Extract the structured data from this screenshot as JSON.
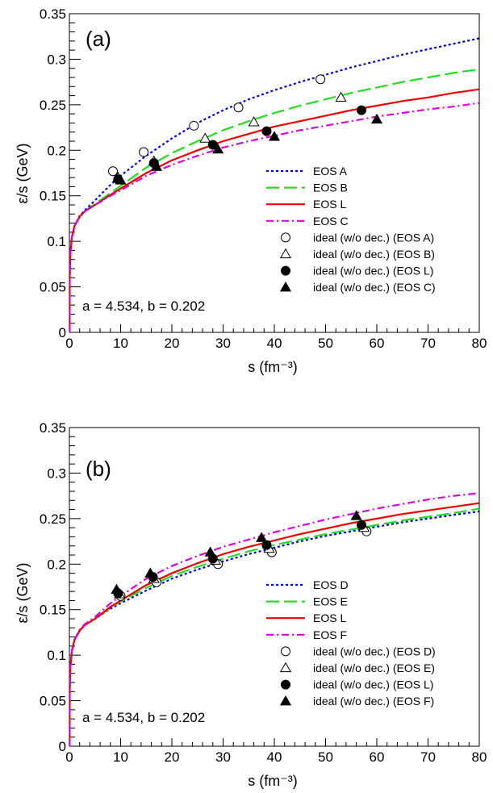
{
  "chart_data": [
    {
      "type": "line",
      "panel_label": "(a)",
      "xlabel": "s (fm⁻³)",
      "ylabel": "ε/s (GeV)",
      "xlim": [
        0,
        80
      ],
      "ylim": [
        0,
        0.35
      ],
      "xticks": [
        "0",
        "10",
        "20",
        "30",
        "40",
        "50",
        "60",
        "70",
        "80"
      ],
      "yticks": [
        "0",
        "0.05",
        "0.1",
        "0.15",
        "0.2",
        "0.25",
        "0.3",
        "0.35"
      ],
      "annotation": "a = 4.534, b = 0.202",
      "grid": false,
      "legend_position": "bottom-right",
      "series": [
        {
          "name": "EOS A",
          "color": "#0000dd",
          "dash": "dot",
          "x": [
            0,
            0.05,
            0.2,
            0.5,
            1,
            2,
            3,
            5,
            8,
            10,
            15,
            20,
            25,
            30,
            35,
            40,
            45,
            50,
            55,
            60,
            65,
            70,
            75,
            80
          ],
          "y": [
            0,
            0.06,
            0.088,
            0.105,
            0.117,
            0.128,
            0.134,
            0.145,
            0.162,
            0.172,
            0.194,
            0.213,
            0.23,
            0.244,
            0.256,
            0.266,
            0.275,
            0.283,
            0.291,
            0.298,
            0.305,
            0.311,
            0.317,
            0.323
          ]
        },
        {
          "name": "EOS B",
          "color": "#22dd22",
          "dash": "long",
          "x": [
            0,
            0.05,
            0.2,
            0.5,
            1,
            2,
            3,
            5,
            8,
            10,
            15,
            20,
            25,
            30,
            35,
            40,
            45,
            50,
            55,
            60,
            65,
            70,
            75,
            80
          ],
          "y": [
            0,
            0.06,
            0.088,
            0.105,
            0.117,
            0.127,
            0.133,
            0.141,
            0.153,
            0.161,
            0.181,
            0.197,
            0.21,
            0.222,
            0.232,
            0.241,
            0.249,
            0.256,
            0.263,
            0.269,
            0.275,
            0.28,
            0.285,
            0.289
          ]
        },
        {
          "name": "EOS L",
          "color": "#ee0000",
          "dash": "solid",
          "x": [
            0,
            0.05,
            0.2,
            0.5,
            1,
            2,
            3,
            5,
            8,
            10,
            15,
            20,
            25,
            30,
            35,
            40,
            45,
            50,
            55,
            60,
            65,
            70,
            75,
            80
          ],
          "y": [
            0,
            0.06,
            0.088,
            0.105,
            0.117,
            0.127,
            0.133,
            0.14,
            0.151,
            0.158,
            0.175,
            0.189,
            0.2,
            0.21,
            0.218,
            0.226,
            0.232,
            0.238,
            0.244,
            0.249,
            0.254,
            0.258,
            0.263,
            0.267
          ]
        },
        {
          "name": "EOS C",
          "color": "#dd00dd",
          "dash": "dashdot",
          "x": [
            0,
            0.05,
            0.2,
            0.5,
            1,
            2,
            3,
            5,
            8,
            10,
            15,
            20,
            25,
            30,
            35,
            40,
            45,
            50,
            55,
            60,
            65,
            70,
            75,
            80
          ],
          "y": [
            0,
            0.06,
            0.088,
            0.105,
            0.117,
            0.127,
            0.133,
            0.14,
            0.15,
            0.156,
            0.172,
            0.184,
            0.194,
            0.203,
            0.21,
            0.216,
            0.222,
            0.227,
            0.232,
            0.237,
            0.241,
            0.245,
            0.248,
            0.252
          ]
        }
      ],
      "markers": [
        {
          "name": "ideal (w/o dec.) (EOS A)",
          "symbol": "open-circle",
          "x": [
            8.5,
            14.5,
            24.3,
            33,
            49
          ],
          "y": [
            0.177,
            0.198,
            0.227,
            0.247,
            0.278
          ]
        },
        {
          "name": "ideal (w/o dec.) (EOS B)",
          "symbol": "open-triangle",
          "x": [
            9.5,
            16.5,
            26.5,
            36,
            53
          ],
          "y": [
            0.17,
            0.188,
            0.213,
            0.231,
            0.258
          ]
        },
        {
          "name": "ideal (w/o dec.) (EOS L)",
          "symbol": "filled-circle",
          "x": [
            9.5,
            16.5,
            28,
            38.5,
            57
          ],
          "y": [
            0.168,
            0.186,
            0.206,
            0.221,
            0.244
          ]
        },
        {
          "name": "ideal (w/o dec.) (EOS C)",
          "symbol": "filled-triangle",
          "x": [
            10,
            17,
            29,
            40,
            60
          ],
          "y": [
            0.167,
            0.182,
            0.201,
            0.215,
            0.234
          ]
        }
      ]
    },
    {
      "type": "line",
      "panel_label": "(b)",
      "xlabel": "s (fm⁻³)",
      "ylabel": "ε/s (GeV)",
      "xlim": [
        0,
        80
      ],
      "ylim": [
        0,
        0.35
      ],
      "xticks": [
        "0",
        "10",
        "20",
        "30",
        "40",
        "50",
        "60",
        "70",
        "80"
      ],
      "yticks": [
        "0",
        "0.05",
        "0.1",
        "0.15",
        "0.2",
        "0.25",
        "0.3",
        "0.35"
      ],
      "annotation": "a = 4.534, b = 0.202",
      "grid": false,
      "legend_position": "bottom-right",
      "series": [
        {
          "name": "EOS D",
          "color": "#0000dd",
          "dash": "dot",
          "x": [
            0,
            0.05,
            0.2,
            0.5,
            1,
            2,
            3,
            5,
            8,
            10,
            15,
            20,
            25,
            30,
            35,
            40,
            45,
            50,
            55,
            60,
            65,
            70,
            75,
            80
          ],
          "y": [
            0,
            0.06,
            0.088,
            0.105,
            0.117,
            0.127,
            0.133,
            0.14,
            0.151,
            0.157,
            0.171,
            0.184,
            0.194,
            0.203,
            0.211,
            0.218,
            0.225,
            0.231,
            0.236,
            0.241,
            0.246,
            0.25,
            0.254,
            0.258
          ]
        },
        {
          "name": "EOS E",
          "color": "#22dd22",
          "dash": "long",
          "x": [
            0,
            0.05,
            0.2,
            0.5,
            1,
            2,
            3,
            5,
            8,
            10,
            15,
            20,
            25,
            30,
            35,
            40,
            45,
            50,
            55,
            60,
            65,
            70,
            75,
            80
          ],
          "y": [
            0,
            0.06,
            0.088,
            0.105,
            0.117,
            0.127,
            0.133,
            0.14,
            0.152,
            0.159,
            0.174,
            0.187,
            0.197,
            0.206,
            0.214,
            0.221,
            0.227,
            0.233,
            0.238,
            0.243,
            0.248,
            0.252,
            0.256,
            0.261
          ]
        },
        {
          "name": "EOS L",
          "color": "#ee0000",
          "dash": "solid",
          "x": [
            0,
            0.05,
            0.2,
            0.5,
            1,
            2,
            3,
            5,
            8,
            10,
            15,
            20,
            25,
            30,
            35,
            40,
            45,
            50,
            55,
            60,
            65,
            70,
            75,
            80
          ],
          "y": [
            0,
            0.06,
            0.088,
            0.105,
            0.117,
            0.127,
            0.133,
            0.14,
            0.153,
            0.16,
            0.177,
            0.19,
            0.201,
            0.211,
            0.219,
            0.226,
            0.233,
            0.239,
            0.245,
            0.25,
            0.255,
            0.259,
            0.263,
            0.267
          ]
        },
        {
          "name": "EOS F",
          "color": "#dd00dd",
          "dash": "dashdot",
          "x": [
            0,
            0.05,
            0.2,
            0.5,
            1,
            2,
            3,
            5,
            8,
            10,
            15,
            20,
            25,
            30,
            35,
            40,
            45,
            50,
            55,
            60,
            65,
            70,
            75,
            80
          ],
          "y": [
            0,
            0.06,
            0.088,
            0.105,
            0.117,
            0.128,
            0.134,
            0.142,
            0.157,
            0.165,
            0.184,
            0.198,
            0.209,
            0.219,
            0.227,
            0.235,
            0.242,
            0.249,
            0.255,
            0.261,
            0.266,
            0.271,
            0.275,
            0.278
          ]
        }
      ],
      "markers": [
        {
          "name": "ideal (w/o dec.) (EOS D)",
          "symbol": "open-circle",
          "x": [
            10,
            17,
            29,
            39.5,
            58
          ],
          "y": [
            0.165,
            0.18,
            0.2,
            0.213,
            0.236
          ]
        },
        {
          "name": "ideal (w/o dec.) (EOS E)",
          "symbol": "open-triangle",
          "x": [
            9.8,
            16.5,
            28.5,
            39,
            57.5
          ],
          "y": [
            0.167,
            0.184,
            0.204,
            0.217,
            0.24
          ]
        },
        {
          "name": "ideal (w/o dec.) (EOS L)",
          "symbol": "filled-circle",
          "x": [
            9.5,
            16.3,
            28,
            38.5,
            57
          ],
          "y": [
            0.168,
            0.186,
            0.206,
            0.221,
            0.243
          ]
        },
        {
          "name": "ideal (w/o dec.) (EOS F)",
          "symbol": "filled-triangle",
          "x": [
            9.2,
            15.8,
            27.5,
            37.5,
            56
          ],
          "y": [
            0.172,
            0.19,
            0.213,
            0.229,
            0.253
          ]
        }
      ]
    }
  ]
}
